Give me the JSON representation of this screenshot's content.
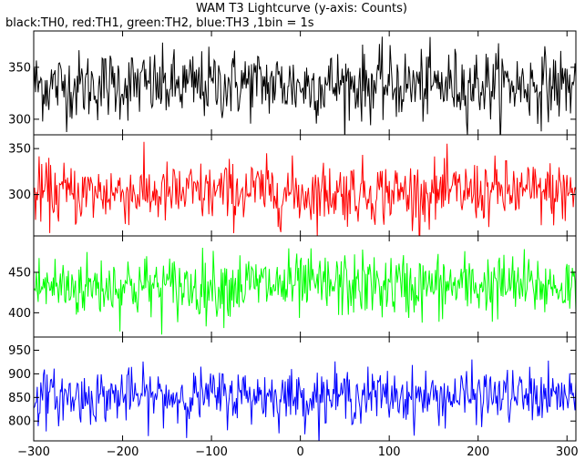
{
  "chart_data": {
    "type": "line",
    "title": "WAM T3 Lightcurve (y-axis: Counts)",
    "subtitle": "black:TH0, red:TH1, green:TH2, blue:TH3 ,1bin = 1s",
    "xlabel": "",
    "xlim": [
      -300,
      310
    ],
    "x_ticks": [
      -300,
      -200,
      -100,
      0,
      100,
      200,
      300
    ],
    "x_step": 1,
    "grid": false,
    "panels": [
      {
        "name": "TH0",
        "color": "#000000",
        "ylabel": "",
        "ylim": [
          285,
          385
        ],
        "y_ticks": [
          300,
          350
        ],
        "baseline": 333,
        "noise_sd": 17,
        "values": [
          {
            "x": -300,
            "y": 333
          },
          {
            "x": -250,
            "y": 332
          },
          {
            "x": -200,
            "y": 334
          },
          {
            "x": -150,
            "y": 331
          },
          {
            "x": -100,
            "y": 333
          },
          {
            "x": -50,
            "y": 335
          },
          {
            "x": 0,
            "y": 332
          },
          {
            "x": 50,
            "y": 334
          },
          {
            "x": 100,
            "y": 333
          },
          {
            "x": 150,
            "y": 332
          },
          {
            "x": 200,
            "y": 334
          },
          {
            "x": 250,
            "y": 333
          },
          {
            "x": 310,
            "y": 333
          }
        ]
      },
      {
        "name": "TH1",
        "color": "#ff0000",
        "ylabel": "",
        "ylim": [
          255,
          365
        ],
        "y_ticks": [
          300,
          350
        ],
        "baseline": 302,
        "noise_sd": 17,
        "values": [
          {
            "x": -300,
            "y": 302
          },
          {
            "x": -250,
            "y": 301
          },
          {
            "x": -200,
            "y": 303
          },
          {
            "x": -150,
            "y": 300
          },
          {
            "x": -100,
            "y": 302
          },
          {
            "x": -50,
            "y": 304
          },
          {
            "x": 0,
            "y": 301
          },
          {
            "x": 50,
            "y": 303
          },
          {
            "x": 100,
            "y": 302
          },
          {
            "x": 150,
            "y": 301
          },
          {
            "x": 200,
            "y": 303
          },
          {
            "x": 250,
            "y": 302
          },
          {
            "x": 310,
            "y": 302
          }
        ]
      },
      {
        "name": "TH2",
        "color": "#00ff00",
        "ylabel": "",
        "ylim": [
          370,
          495
        ],
        "y_ticks": [
          400,
          450
        ],
        "baseline": 433,
        "noise_sd": 20,
        "values": [
          {
            "x": -300,
            "y": 433
          },
          {
            "x": -250,
            "y": 432
          },
          {
            "x": -200,
            "y": 434
          },
          {
            "x": -150,
            "y": 431
          },
          {
            "x": -100,
            "y": 433
          },
          {
            "x": -50,
            "y": 435
          },
          {
            "x": 0,
            "y": 432
          },
          {
            "x": 50,
            "y": 434
          },
          {
            "x": 100,
            "y": 433
          },
          {
            "x": 150,
            "y": 432
          },
          {
            "x": 200,
            "y": 434
          },
          {
            "x": 250,
            "y": 433
          },
          {
            "x": 310,
            "y": 433
          }
        ]
      },
      {
        "name": "TH3",
        "color": "#0000ff",
        "ylabel": "",
        "ylim": [
          758,
          978
        ],
        "y_ticks": [
          800,
          850,
          900,
          950
        ],
        "baseline": 852,
        "noise_sd": 28,
        "values": [
          {
            "x": -300,
            "y": 852
          },
          {
            "x": -250,
            "y": 850
          },
          {
            "x": -200,
            "y": 854
          },
          {
            "x": -150,
            "y": 851
          },
          {
            "x": -100,
            "y": 853
          },
          {
            "x": -50,
            "y": 855
          },
          {
            "x": 0,
            "y": 851
          },
          {
            "x": 50,
            "y": 854
          },
          {
            "x": 100,
            "y": 853
          },
          {
            "x": 150,
            "y": 850
          },
          {
            "x": 200,
            "y": 854
          },
          {
            "x": 250,
            "y": 852
          },
          {
            "x": 310,
            "y": 852
          }
        ]
      }
    ]
  }
}
